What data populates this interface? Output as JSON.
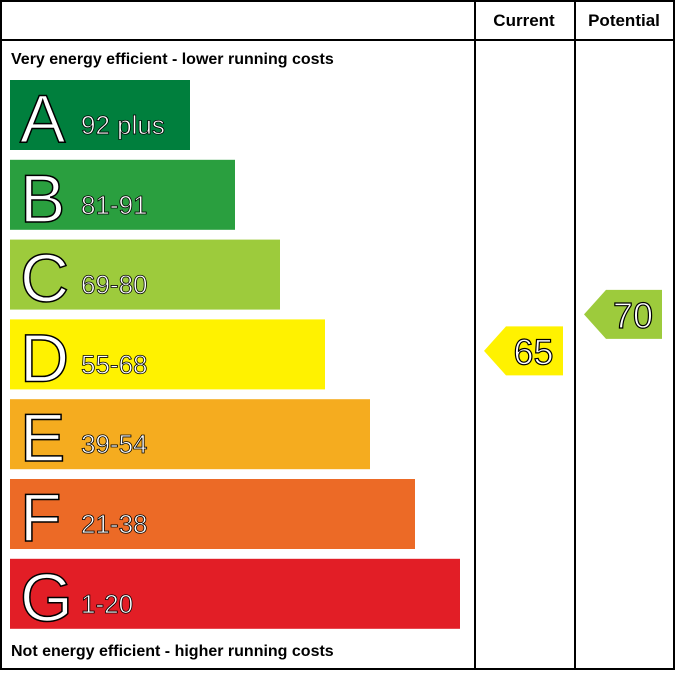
{
  "chart_data": {
    "type": "bar",
    "headers": {
      "current": "Current",
      "potential": "Potential"
    },
    "top_label": "Very energy efficient - lower running costs",
    "bottom_label": "Not energy efficient - higher running costs",
    "bands": [
      {
        "letter": "A",
        "range": "92 plus",
        "color": "#007f3d"
      },
      {
        "letter": "B",
        "range": "81-91",
        "color": "#2a9f3f"
      },
      {
        "letter": "C",
        "range": "69-80",
        "color": "#9dcb3c"
      },
      {
        "letter": "D",
        "range": "55-68",
        "color": "#fff200"
      },
      {
        "letter": "E",
        "range": "39-54",
        "color": "#f5ac1f"
      },
      {
        "letter": "F",
        "range": "21-38",
        "color": "#ec6a26"
      },
      {
        "letter": "G",
        "range": "1-20",
        "color": "#e21e26"
      }
    ],
    "current": {
      "value": 65,
      "label": "65",
      "band": "D",
      "color": "#fff200"
    },
    "potential": {
      "value": 70,
      "label": "70",
      "band": "C",
      "color": "#9dcb3c"
    }
  }
}
